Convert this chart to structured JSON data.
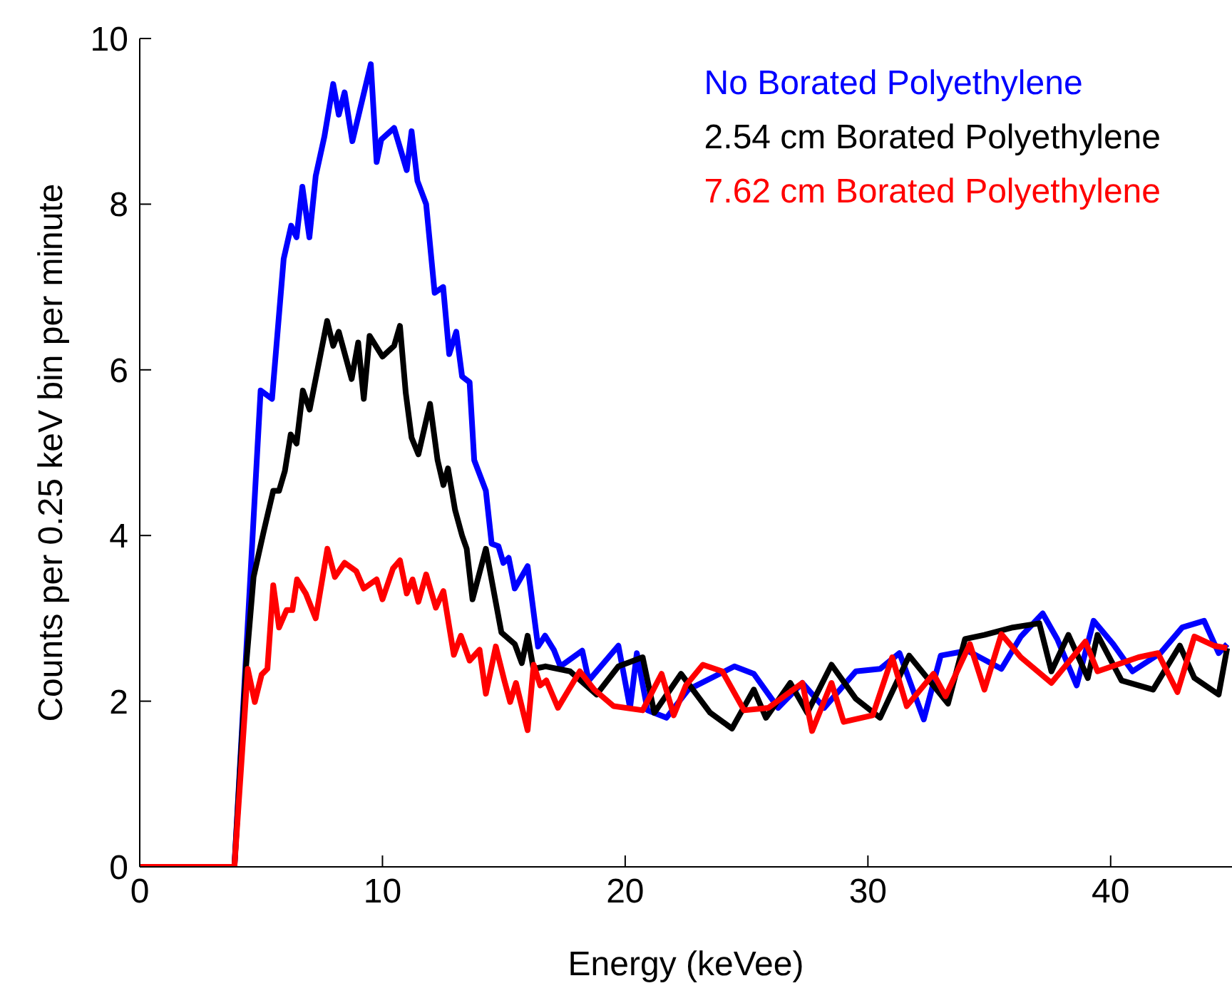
{
  "chart_data": {
    "type": "line",
    "xlabel": "Energy (keVee)",
    "ylabel": "Counts per 0.25 keV bin per minute",
    "xlim": [
      0,
      45
    ],
    "xticks": [
      0,
      10,
      20,
      30,
      40
    ],
    "ylim": [
      0,
      10
    ],
    "yticks": [
      0,
      2,
      4,
      6,
      8,
      10
    ],
    "legend": "top right",
    "grid": false,
    "marker": "none",
    "line_style": "solid",
    "series": [
      {
        "name": "No Borated Polyethylene",
        "color": "#0000ff",
        "x": [
          0,
          3.9,
          4.98,
          5.45,
          5.93,
          6.24,
          6.46,
          6.7,
          6.99,
          7.25,
          7.61,
          7.97,
          8.2,
          8.44,
          8.76,
          9.52,
          9.76,
          9.95,
          10.48,
          11.0,
          11.2,
          11.44,
          11.8,
          12.15,
          12.5,
          12.75,
          13.04,
          13.28,
          13.59,
          13.78,
          14.26,
          14.5,
          14.78,
          14.98,
          15.2,
          15.45,
          15.98,
          16.41,
          16.7,
          17.06,
          17.33,
          18.23,
          18.5,
          19.72,
          20.2,
          20.48,
          20.92,
          21.7,
          22.6,
          24.5,
          25.3,
          26.3,
          27.3,
          28.2,
          29.5,
          30.5,
          31.3,
          32.3,
          33.0,
          34.1,
          35.5,
          36.3,
          37.2,
          37.8,
          38.6,
          39.3,
          40.1,
          40.9,
          42.05,
          42.95,
          43.85,
          44.45,
          44.8
        ],
        "values": [
          0,
          0,
          5.75,
          5.65,
          7.34,
          7.74,
          7.6,
          8.21,
          7.6,
          8.34,
          8.82,
          9.45,
          9.08,
          9.35,
          8.76,
          9.69,
          8.51,
          8.78,
          8.92,
          8.41,
          8.88,
          8.28,
          8.0,
          6.93,
          7.0,
          6.19,
          6.46,
          5.92,
          5.85,
          4.91,
          4.54,
          3.9,
          3.87,
          3.67,
          3.73,
          3.36,
          3.63,
          2.66,
          2.79,
          2.62,
          2.42,
          2.61,
          2.25,
          2.67,
          1.92,
          2.58,
          1.89,
          1.8,
          2.14,
          2.42,
          2.33,
          1.92,
          2.22,
          1.92,
          2.36,
          2.39,
          2.58,
          1.78,
          2.55,
          2.61,
          2.39,
          2.78,
          3.06,
          2.75,
          2.19,
          2.97,
          2.69,
          2.36,
          2.58,
          2.89,
          2.97,
          2.58,
          2.69
        ]
      },
      {
        "name": "2.54 cm Borated Polyethylene",
        "color": "#000000",
        "x": [
          0,
          3.9,
          4.38,
          4.69,
          5.1,
          5.5,
          5.74,
          5.98,
          6.22,
          6.46,
          6.72,
          7.0,
          7.72,
          7.97,
          8.2,
          8.73,
          9.0,
          9.23,
          9.47,
          10.0,
          10.48,
          10.72,
          10.96,
          11.2,
          11.48,
          11.96,
          12.27,
          12.51,
          12.7,
          12.99,
          13.28,
          13.47,
          13.71,
          14.26,
          14.9,
          15.45,
          15.74,
          15.98,
          16.22,
          16.73,
          17.73,
          18.82,
          19.72,
          20.72,
          21.2,
          22.3,
          23.5,
          24.4,
          25.3,
          25.8,
          26.8,
          27.5,
          28.5,
          29.5,
          30.5,
          31.7,
          33.3,
          34.0,
          34.8,
          35.97,
          37.06,
          37.56,
          38.26,
          39.06,
          39.46,
          40.45,
          41.75,
          42.85,
          43.45,
          44.45,
          44.8
        ],
        "values": [
          0,
          0,
          2.42,
          3.5,
          4.04,
          4.54,
          4.54,
          4.78,
          5.22,
          5.11,
          5.75,
          5.52,
          6.59,
          6.29,
          6.46,
          5.89,
          6.33,
          5.65,
          6.41,
          6.16,
          6.29,
          6.53,
          5.72,
          5.18,
          4.98,
          5.59,
          4.91,
          4.61,
          4.81,
          4.31,
          4.0,
          3.84,
          3.23,
          3.84,
          2.83,
          2.69,
          2.46,
          2.79,
          2.39,
          2.42,
          2.36,
          2.08,
          2.42,
          2.53,
          1.86,
          2.33,
          1.86,
          1.67,
          2.14,
          1.8,
          2.22,
          1.86,
          2.44,
          2.03,
          1.8,
          2.55,
          1.97,
          2.75,
          2.8,
          2.89,
          2.94,
          2.36,
          2.8,
          2.28,
          2.8,
          2.25,
          2.14,
          2.67,
          2.28,
          2.08,
          2.64
        ]
      },
      {
        "name": "7.62 cm Borated Polyethylene",
        "color": "#ff0000",
        "x": [
          0,
          3.9,
          4.45,
          4.74,
          5.02,
          5.26,
          5.5,
          5.74,
          6.05,
          6.29,
          6.48,
          6.84,
          7.25,
          7.73,
          8.04,
          8.44,
          8.92,
          9.23,
          9.76,
          10.0,
          10.43,
          10.72,
          11.0,
          11.24,
          11.48,
          11.8,
          12.2,
          12.51,
          12.94,
          13.23,
          13.59,
          14.0,
          14.26,
          14.67,
          15.02,
          15.26,
          15.5,
          15.98,
          16.23,
          16.5,
          16.75,
          17.23,
          18.13,
          18.72,
          19.52,
          20.72,
          21.5,
          22.0,
          22.5,
          23.2,
          24.0,
          24.9,
          25.9,
          27.3,
          27.7,
          28.5,
          29.0,
          30.2,
          31.0,
          31.6,
          32.7,
          33.2,
          34.2,
          34.8,
          35.5,
          36.3,
          37.56,
          38.96,
          39.46,
          41.15,
          41.95,
          42.75,
          43.45,
          44.25,
          44.8
        ],
        "values": [
          0,
          0,
          2.39,
          1.99,
          2.32,
          2.39,
          3.4,
          2.89,
          3.1,
          3.1,
          3.47,
          3.3,
          3.0,
          3.84,
          3.5,
          3.67,
          3.57,
          3.36,
          3.47,
          3.23,
          3.6,
          3.7,
          3.3,
          3.47,
          3.2,
          3.53,
          3.13,
          3.33,
          2.56,
          2.79,
          2.49,
          2.62,
          2.09,
          2.66,
          2.25,
          1.99,
          2.22,
          1.65,
          2.44,
          2.19,
          2.25,
          1.92,
          2.36,
          2.14,
          1.94,
          1.89,
          2.33,
          1.83,
          2.19,
          2.44,
          2.36,
          1.89,
          1.92,
          2.22,
          1.64,
          2.22,
          1.75,
          1.83,
          2.53,
          1.94,
          2.33,
          2.06,
          2.69,
          2.14,
          2.81,
          2.53,
          2.22,
          2.72,
          2.36,
          2.53,
          2.58,
          2.11,
          2.78,
          2.67,
          2.64
        ]
      }
    ]
  }
}
